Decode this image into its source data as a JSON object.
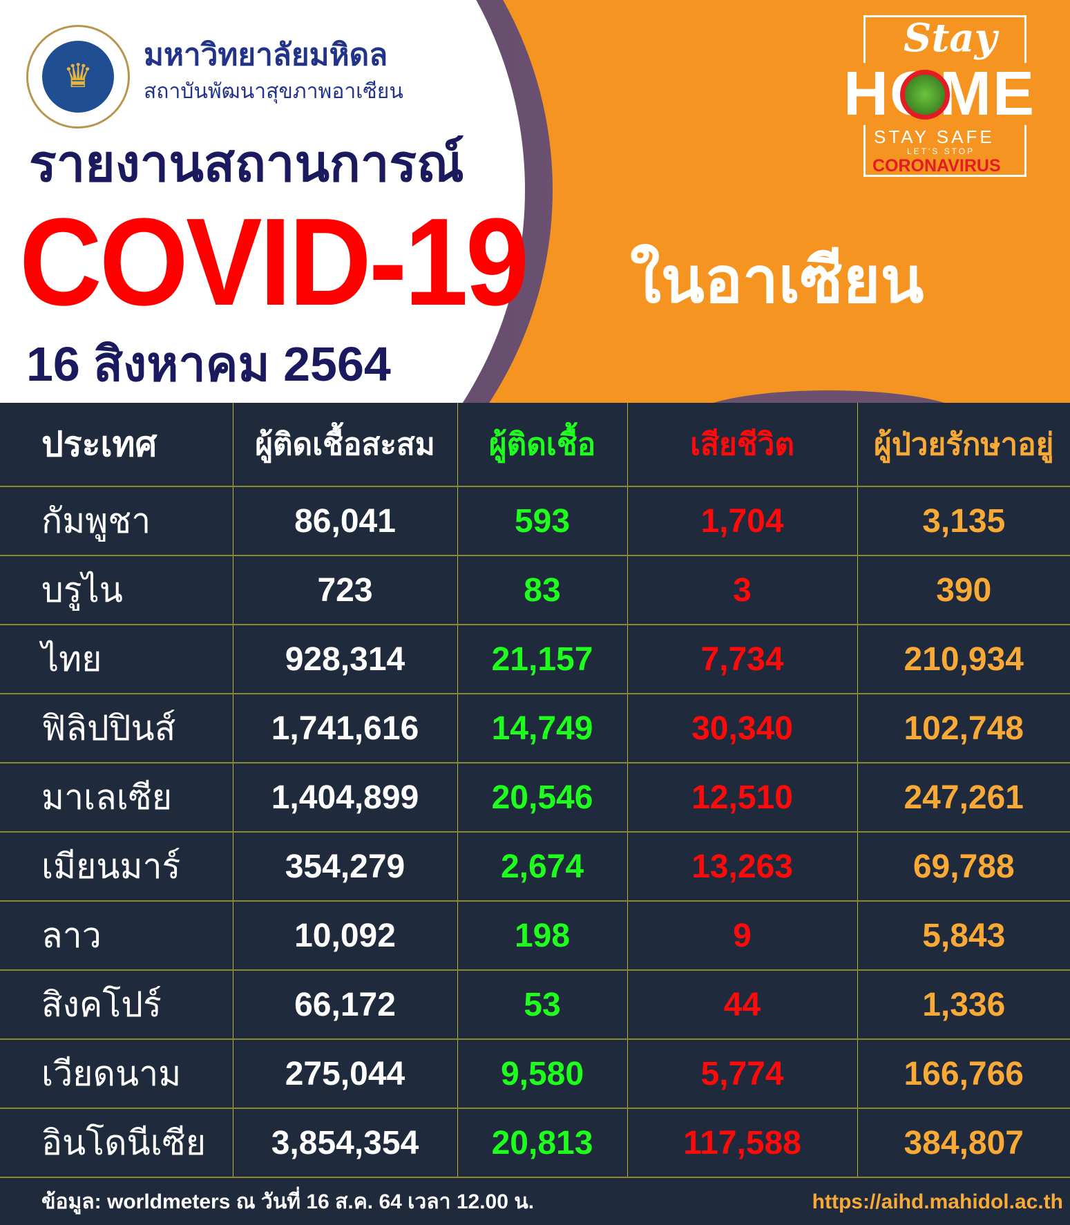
{
  "header": {
    "university": "มหาวิทยาลัยมหิดล",
    "institute": "สถาบันพัฒนาสุขภาพอาเซียน",
    "report_title": "รายงานสถานการณ์",
    "covid_title": "COVID-19",
    "region": "ในอาเซียน",
    "date": "16 สิงหาคม 2564",
    "badge": {
      "stay": "Stay",
      "home": "HOME",
      "stay_safe": "STAY SAFE",
      "lets_stop": "LET'S STOP",
      "coronavirus": "CORONAVIRUS"
    }
  },
  "colors": {
    "background": "#1f2a3c",
    "orange": "#f69421",
    "new_cases": "#1eff1e",
    "deaths": "#ff0a0a",
    "active": "#f8a936",
    "title_red": "#ff0000",
    "navy": "#1c1a5e"
  },
  "table": {
    "headers": [
      "ประเทศ",
      "ผู้ติดเชื้อสะสม",
      "ผู้ติดเชื้อ",
      "เสียชีวิต",
      "ผู้ป่วยรักษาอยู่"
    ],
    "rows": [
      [
        "กัมพูชา",
        "86,041",
        "593",
        "1,704",
        "3,135"
      ],
      [
        "บรูไน",
        "723",
        "83",
        "3",
        "390"
      ],
      [
        "ไทย",
        "928,314",
        "21,157",
        "7,734",
        "210,934"
      ],
      [
        "ฟิลิปปินส์",
        "1,741,616",
        "14,749",
        "30,340",
        "102,748"
      ],
      [
        "มาเลเซีย",
        "1,404,899",
        "20,546",
        "12,510",
        "247,261"
      ],
      [
        "เมียนมาร์",
        "354,279",
        "2,674",
        "13,263",
        "69,788"
      ],
      [
        "ลาว",
        "10,092",
        "198",
        "9",
        "5,843"
      ],
      [
        "สิงคโปร์",
        "66,172",
        "53",
        "44",
        "1,336"
      ],
      [
        "เวียดนาม",
        "275,044",
        "9,580",
        "5,774",
        "166,766"
      ],
      [
        "อินโดนีเซีย",
        "3,854,354",
        "20,813",
        "117,588",
        "384,807"
      ]
    ]
  },
  "footer": {
    "source": "ข้อมูล: worldmeters ณ วันที่  16 ส.ค. 64 เวลา 12.00 น.",
    "url": "https://aihd.mahidol.ac.th"
  }
}
